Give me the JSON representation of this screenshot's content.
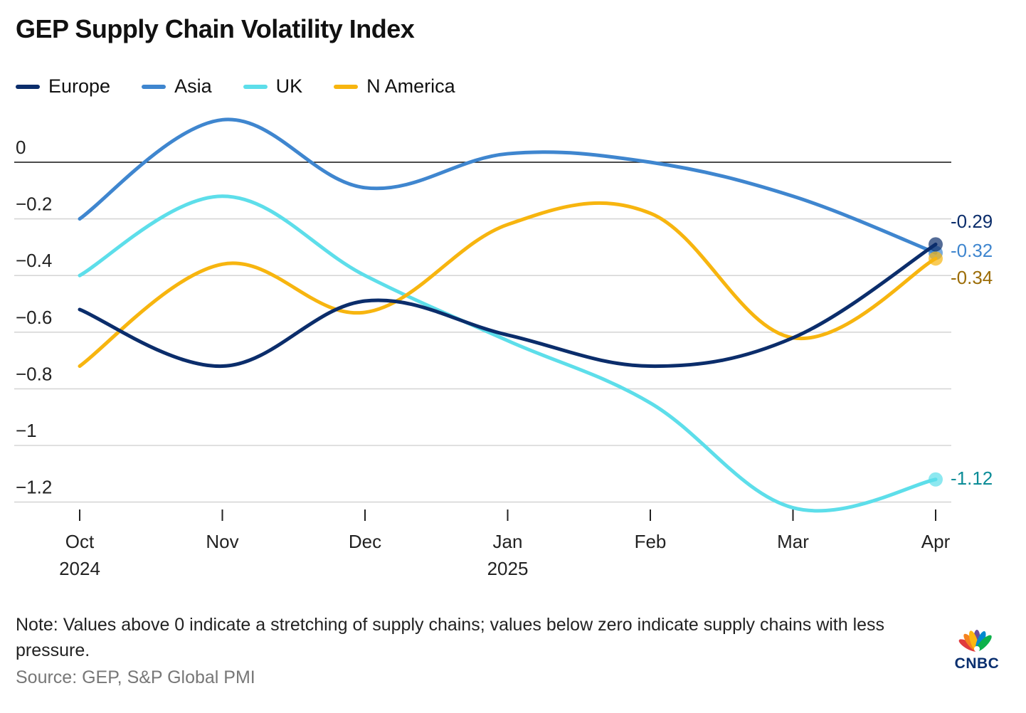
{
  "header": {
    "title": "GEP Supply Chain Volatility Index"
  },
  "legend": [
    {
      "name": "Europe",
      "color": "#0b2d6b"
    },
    {
      "name": "Asia",
      "color": "#3f86cf"
    },
    {
      "name": "UK",
      "color": "#5ddeea"
    },
    {
      "name": "N America",
      "color": "#f7b50f"
    }
  ],
  "chart_data": {
    "type": "line",
    "title": "GEP Supply Chain Volatility Index",
    "x": [
      "Oct 2024",
      "Nov",
      "Dec",
      "Jan 2025",
      "Feb",
      "Mar",
      "Apr"
    ],
    "x_tick_labels": [
      {
        "line1": "Oct",
        "line2": "2024"
      },
      {
        "line1": "Nov",
        "line2": ""
      },
      {
        "line1": "Dec",
        "line2": ""
      },
      {
        "line1": "Jan",
        "line2": "2025"
      },
      {
        "line1": "Feb",
        "line2": ""
      },
      {
        "line1": "Mar",
        "line2": ""
      },
      {
        "line1": "Apr",
        "line2": ""
      }
    ],
    "y_ticks": [
      0,
      -0.2,
      -0.4,
      -0.6,
      -0.8,
      -1,
      -1.2
    ],
    "y_tick_labels": [
      "0",
      "−0.2",
      "−0.4",
      "−0.6",
      "−0.8",
      "−1",
      "−1.2"
    ],
    "ylim": [
      -1.22,
      0.15
    ],
    "grid": true,
    "legend_position": "top-left",
    "series": [
      {
        "name": "Europe",
        "color": "#0b2d6b",
        "label_color": "#0b2d6b",
        "values": [
          -0.52,
          -0.72,
          -0.49,
          -0.61,
          -0.72,
          -0.62,
          -0.29
        ],
        "end_label": "-0.29"
      },
      {
        "name": "Asia",
        "color": "#3f86cf",
        "label_color": "#3f86cf",
        "values": [
          -0.2,
          0.15,
          -0.09,
          0.03,
          0.0,
          -0.12,
          -0.32
        ],
        "end_label": "-0.32"
      },
      {
        "name": "UK",
        "color": "#5ddeea",
        "label_color": "#0b8c97",
        "values": [
          -0.4,
          -0.12,
          -0.4,
          -0.63,
          -0.85,
          -1.22,
          -1.12
        ],
        "end_label": "-1.12"
      },
      {
        "name": "N America",
        "color": "#f7b50f",
        "label_color": "#9c6d08",
        "values": [
          -0.72,
          -0.36,
          -0.53,
          -0.22,
          -0.18,
          -0.62,
          -0.34
        ],
        "end_label": "-0.34"
      }
    ]
  },
  "footer": {
    "note": "Note: Values above 0 indicate a stretching of supply chains; values below zero indicate supply chains with less pressure.",
    "source": "Source: GEP, S&P Global PMI",
    "logo_text": "CNBC"
  }
}
